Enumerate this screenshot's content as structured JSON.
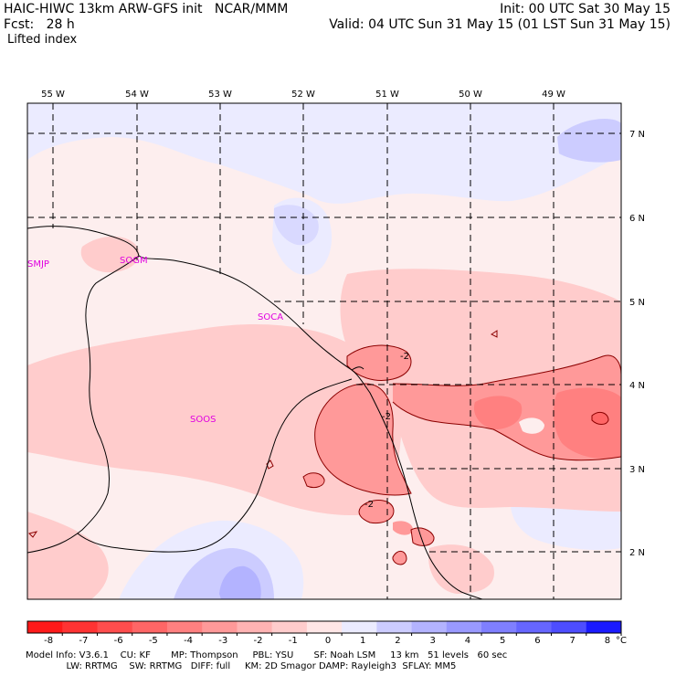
{
  "header": {
    "model_line": "HAIC-HIWC 13km ARW-GFS init   NCAR/MMM",
    "fcst_label": "Fcst:   28 h",
    "field_name": "Lifted index",
    "init": "Init: 00 UTC Sat 30 May 15",
    "valid": "Valid: 04 UTC Sun 31 May 15 (01 LST Sun 31 May 15)"
  },
  "map": {
    "lon_labels": [
      "55 W",
      "54 W",
      "53 W",
      "52 W",
      "51 W",
      "50 W",
      "49 W"
    ],
    "lat_labels": [
      "7 N",
      "6 N",
      "5 N",
      "4 N",
      "3 N",
      "2 N"
    ],
    "stations": [
      "SMJP",
      "SOGM",
      "SOCA",
      "SOOS"
    ],
    "contour_labels": [
      "-2",
      "-2",
      "-2"
    ]
  },
  "colorbar": {
    "ticks": [
      "-8",
      "-7",
      "-6",
      "-5",
      "-4",
      "-3",
      "-2",
      "-1",
      "0",
      "1",
      "2",
      "3",
      "4",
      "5",
      "6",
      "7",
      "8"
    ],
    "unit": "°C",
    "colors": [
      "#ff1a1a",
      "#ff3333",
      "#ff4d4d",
      "#ff6666",
      "#ff8080",
      "#ff9999",
      "#ffb3b3",
      "#ffcccc",
      "#ffe6e6",
      "#ebebff",
      "#ccccff",
      "#b3b3ff",
      "#9999ff",
      "#7f7fff",
      "#6666ff",
      "#4d4dff",
      "#1a1aff"
    ]
  },
  "footer": {
    "line1": "Model Info: V3.6.1    CU: KF       MP: Thompson     PBL: YSU       SF: Noah LSM     13 km   51 levels   60 sec",
    "line2": "              LW: RRTMG    SW: RRTMG   DIFF: full     KM: 2D Smagor DAMP: Rayleigh3  SFLAY: MM5"
  }
}
